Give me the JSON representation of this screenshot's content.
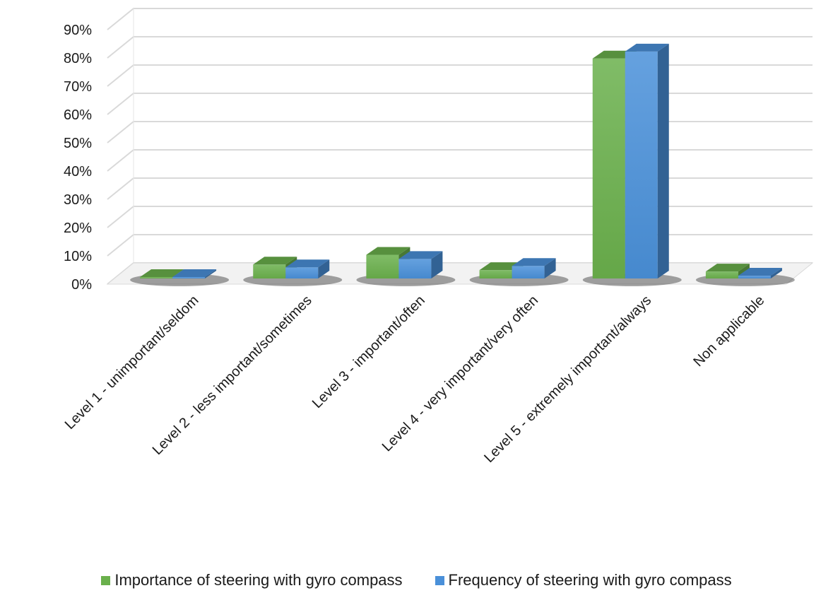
{
  "chart_data": {
    "type": "bar",
    "categories": [
      "Level 1 - unimportant/seldom",
      "Level 2 - less important/sometimes",
      "Level 3 - important/often",
      "Level 4 - very important/very often",
      "Level 5 - extremely important/always",
      "Non applicable"
    ],
    "series": [
      {
        "name": "Importance of steering with gyro compass",
        "values": [
          0.5,
          5,
          8.5,
          3,
          79,
          2.5
        ],
        "color": "#6ab04c"
      },
      {
        "name": "Frequency of steering with gyro compass",
        "values": [
          0.5,
          4,
          7,
          4.5,
          81.5,
          1
        ],
        "color": "#4a90d9"
      }
    ],
    "yticks": [
      "0%",
      "10%",
      "20%",
      "30%",
      "40%",
      "50%",
      "60%",
      "70%",
      "80%",
      "90%"
    ],
    "ylim": [
      0,
      90
    ],
    "grid": true,
    "legend_position": "bottom"
  }
}
